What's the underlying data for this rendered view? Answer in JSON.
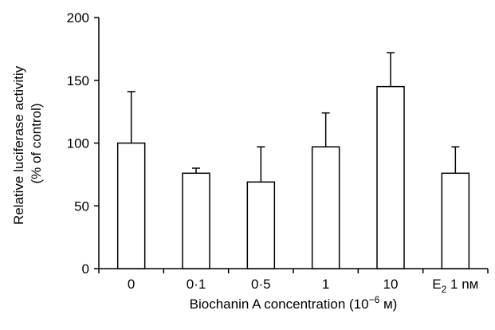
{
  "chart_data": {
    "type": "bar",
    "categories": [
      "0",
      "0·1",
      "0·5",
      "1",
      "10",
      "E2 1 nM"
    ],
    "category_display": [
      {
        "main": "0"
      },
      {
        "main": "0·1"
      },
      {
        "main": "0·5"
      },
      {
        "main": "1"
      },
      {
        "main": "10"
      },
      {
        "main": "E",
        "sub": "2",
        "rest": " 1 nм"
      }
    ],
    "values": [
      100,
      76,
      69,
      97,
      145,
      76
    ],
    "errors": [
      41,
      4,
      28,
      27,
      27,
      21
    ],
    "ylim": [
      0,
      200
    ],
    "yticks": [
      "0",
      "50",
      "100",
      "150",
      "200"
    ],
    "ylabel_line1": "Relative luciferase activitiy",
    "ylabel_line2": "(% of control)",
    "xlabel_main": "Biochanin A concentration (10",
    "xlabel_sup": "−6",
    "xlabel_end": " м)",
    "bar_fill": "#ffffff",
    "bar_stroke": "#000000",
    "grid": false
  }
}
